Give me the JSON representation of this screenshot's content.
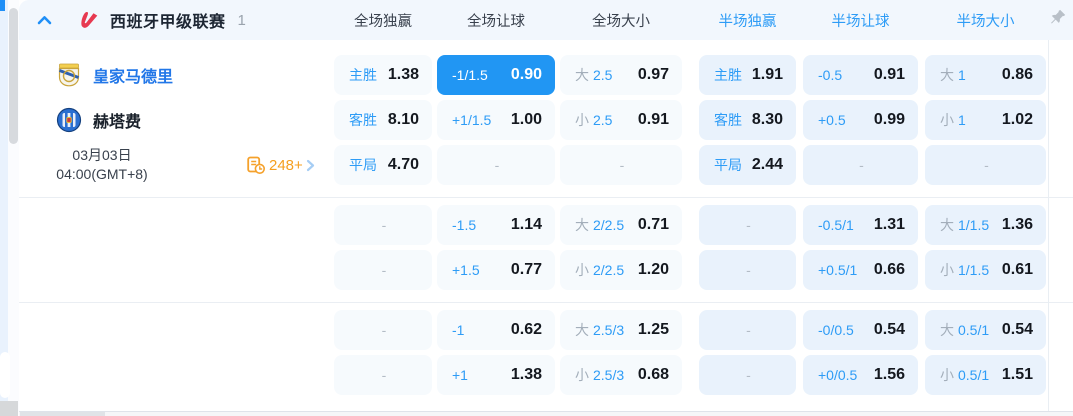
{
  "colors": {
    "accent_blue": "#2e9cf6",
    "highlight_cell_bg": "#2196f3",
    "full_cell_bg": "#f6fafd",
    "half_cell_bg": "#e9f2fc",
    "odds_value_text": "#14181f",
    "over_under_gray": "#a3aeba",
    "markets_orange": "#f59f1f",
    "home_team_blue": "#2277e8",
    "header_bg": "#f2f7fd"
  },
  "league_header": {
    "name": "西班牙甲级联赛",
    "count": "1",
    "full_columns": [
      "全场独赢",
      "全场让球",
      "全场大小"
    ],
    "half_columns": [
      "半场独赢",
      "半场让球",
      "半场大小"
    ],
    "icons": {
      "collapse": "chevron-up",
      "logo": "laliga-logo",
      "pin": "pushpin"
    }
  },
  "match": {
    "home": {
      "name": "皇家马德里"
    },
    "away": {
      "name": "赫塔费"
    },
    "date": "03月03日",
    "time": "04:00(GMT+8)",
    "markets_count": "248+"
  },
  "odds": {
    "groups": [
      {
        "rows": [
          {
            "team": "home",
            "cells": [
              {
                "t": "win",
                "label": "主胜",
                "value": "1.38"
              },
              {
                "t": "hcp",
                "label": "-1/1.5",
                "value": "0.90",
                "hl": true
              },
              {
                "t": "tot",
                "side": "大",
                "line": "2.5",
                "value": "0.97"
              },
              {
                "t": "win",
                "label": "主胜",
                "value": "1.91"
              },
              {
                "t": "hcp",
                "label": "-0.5",
                "value": "0.91"
              },
              {
                "t": "tot",
                "side": "大",
                "line": "1",
                "value": "0.86"
              }
            ]
          },
          {
            "team": "away",
            "cells": [
              {
                "t": "win",
                "label": "客胜",
                "value": "8.10"
              },
              {
                "t": "hcp",
                "label": "+1/1.5",
                "value": "1.00"
              },
              {
                "t": "tot",
                "side": "小",
                "line": "2.5",
                "value": "0.91"
              },
              {
                "t": "win",
                "label": "客胜",
                "value": "8.30"
              },
              {
                "t": "hcp",
                "label": "+0.5",
                "value": "0.99"
              },
              {
                "t": "tot",
                "side": "小",
                "line": "1",
                "value": "1.02"
              }
            ]
          },
          {
            "team": "info",
            "cells": [
              {
                "t": "win",
                "label": "平局",
                "value": "4.70"
              },
              {
                "t": "dash",
                "value": "-"
              },
              {
                "t": "dash",
                "value": "-"
              },
              {
                "t": "win",
                "label": "平局",
                "value": "2.44"
              },
              {
                "t": "dash",
                "value": "-"
              },
              {
                "t": "dash",
                "value": "-"
              }
            ]
          }
        ]
      },
      {
        "rows": [
          {
            "team": null,
            "cells": [
              {
                "t": "dash",
                "value": "-"
              },
              {
                "t": "hcp",
                "label": "-1.5",
                "value": "1.14"
              },
              {
                "t": "tot",
                "side": "大",
                "line": "2/2.5",
                "value": "0.71"
              },
              {
                "t": "dash",
                "value": "-"
              },
              {
                "t": "hcp",
                "label": "-0.5/1",
                "value": "1.31"
              },
              {
                "t": "tot",
                "side": "大",
                "line": "1/1.5",
                "value": "1.36"
              }
            ]
          },
          {
            "team": null,
            "cells": [
              {
                "t": "dash",
                "value": "-"
              },
              {
                "t": "hcp",
                "label": "+1.5",
                "value": "0.77"
              },
              {
                "t": "tot",
                "side": "小",
                "line": "2/2.5",
                "value": "1.20"
              },
              {
                "t": "dash",
                "value": "-"
              },
              {
                "t": "hcp",
                "label": "+0.5/1",
                "value": "0.66"
              },
              {
                "t": "tot",
                "side": "小",
                "line": "1/1.5",
                "value": "0.61"
              }
            ]
          }
        ]
      },
      {
        "rows": [
          {
            "team": null,
            "cells": [
              {
                "t": "dash",
                "value": "-"
              },
              {
                "t": "hcp",
                "label": "-1",
                "value": "0.62"
              },
              {
                "t": "tot",
                "side": "大",
                "line": "2.5/3",
                "value": "1.25"
              },
              {
                "t": "dash",
                "value": "-"
              },
              {
                "t": "hcp",
                "label": "-0/0.5",
                "value": "0.54"
              },
              {
                "t": "tot",
                "side": "大",
                "line": "0.5/1",
                "value": "0.54"
              }
            ]
          },
          {
            "team": null,
            "cells": [
              {
                "t": "dash",
                "value": "-"
              },
              {
                "t": "hcp",
                "label": "+1",
                "value": "1.38"
              },
              {
                "t": "tot",
                "side": "小",
                "line": "2.5/3",
                "value": "0.68"
              },
              {
                "t": "dash",
                "value": "-"
              },
              {
                "t": "hcp",
                "label": "+0/0.5",
                "value": "1.56"
              },
              {
                "t": "tot",
                "side": "小",
                "line": "0.5/1",
                "value": "1.51"
              }
            ]
          }
        ]
      }
    ]
  }
}
